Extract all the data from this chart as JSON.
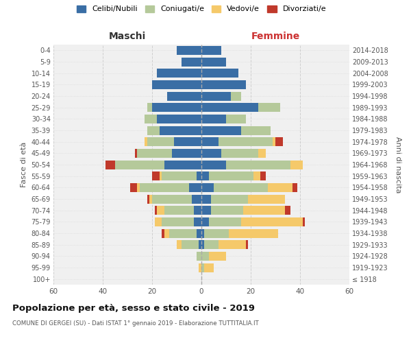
{
  "age_groups": [
    "100+",
    "95-99",
    "90-94",
    "85-89",
    "80-84",
    "75-79",
    "70-74",
    "65-69",
    "60-64",
    "55-59",
    "50-54",
    "45-49",
    "40-44",
    "35-39",
    "30-34",
    "25-29",
    "20-24",
    "15-19",
    "10-14",
    "5-9",
    "0-4"
  ],
  "birth_years": [
    "≤ 1918",
    "1919-1923",
    "1924-1928",
    "1929-1933",
    "1934-1938",
    "1939-1943",
    "1944-1948",
    "1949-1953",
    "1954-1958",
    "1959-1963",
    "1964-1968",
    "1969-1973",
    "1974-1978",
    "1979-1983",
    "1984-1988",
    "1989-1993",
    "1994-1998",
    "1999-2003",
    "2004-2008",
    "2009-2013",
    "2014-2018"
  ],
  "maschi": {
    "celibi": [
      0,
      0,
      0,
      1,
      2,
      3,
      3,
      4,
      5,
      2,
      15,
      12,
      11,
      17,
      18,
      20,
      14,
      20,
      18,
      8,
      10
    ],
    "coniugati": [
      0,
      0,
      2,
      7,
      11,
      13,
      12,
      16,
      20,
      14,
      20,
      14,
      11,
      5,
      5,
      2,
      0,
      0,
      0,
      0,
      0
    ],
    "vedovi": [
      0,
      1,
      0,
      2,
      2,
      3,
      3,
      1,
      1,
      1,
      0,
      0,
      1,
      0,
      0,
      0,
      0,
      0,
      0,
      0,
      0
    ],
    "divorziati": [
      0,
      0,
      0,
      0,
      1,
      0,
      1,
      1,
      3,
      3,
      4,
      1,
      0,
      0,
      0,
      0,
      0,
      0,
      0,
      0,
      0
    ]
  },
  "femmine": {
    "nubili": [
      0,
      0,
      0,
      1,
      1,
      3,
      4,
      4,
      5,
      3,
      10,
      8,
      7,
      16,
      10,
      23,
      12,
      18,
      15,
      10,
      8
    ],
    "coniugate": [
      0,
      1,
      3,
      6,
      10,
      13,
      13,
      15,
      22,
      18,
      26,
      15,
      22,
      12,
      8,
      9,
      4,
      0,
      0,
      0,
      0
    ],
    "vedove": [
      0,
      4,
      7,
      11,
      20,
      25,
      17,
      15,
      10,
      3,
      5,
      3,
      1,
      0,
      0,
      0,
      0,
      0,
      0,
      0,
      0
    ],
    "divorziate": [
      0,
      0,
      0,
      1,
      0,
      1,
      2,
      0,
      2,
      2,
      0,
      0,
      3,
      0,
      0,
      0,
      0,
      0,
      0,
      0,
      0
    ]
  },
  "colors": {
    "celibi": "#3a6ea5",
    "coniugati": "#b5c99a",
    "vedovi": "#f5c96a",
    "divorziati": "#c0392b"
  },
  "title": "Popolazione per età, sesso e stato civile - 2019",
  "subtitle": "COMUNE DI GERGEI (SU) - Dati ISTAT 1° gennaio 2019 - Elaborazione TUTTITALIA.IT",
  "xlabel_left": "Maschi",
  "xlabel_right": "Femmine",
  "ylabel_left": "Fasce di età",
  "ylabel_right": "Anni di nascita",
  "xlim": 60,
  "background_color": "#f0f0f0",
  "grid_color": "#cccccc"
}
